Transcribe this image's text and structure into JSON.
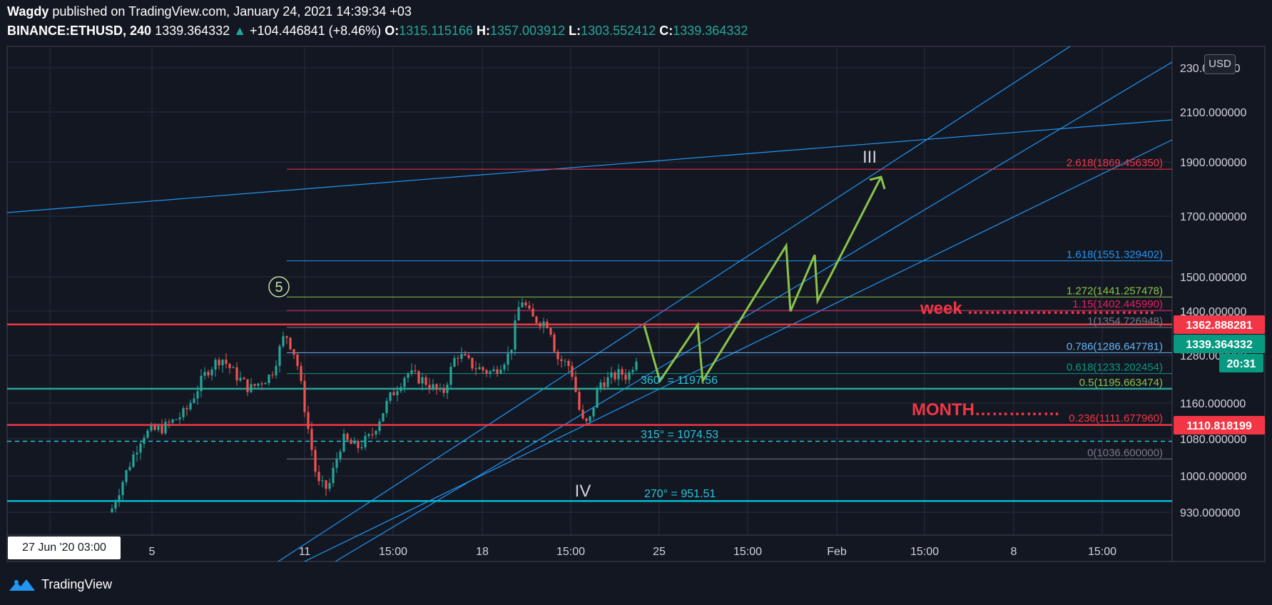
{
  "header": {
    "author": "Wagdy",
    "published_text": "published on TradingView.com, January 24, 2021 14:39:34 +03",
    "symbol": "BINANCE:ETHUSD, 240",
    "last": "1339.364332",
    "change": "+104.446841 (+8.46%)",
    "o_label": "O:",
    "o_value": "1315.115166",
    "h_label": "H:",
    "h_value": "1357.003912",
    "l_label": "L:",
    "l_value": "1303.552412",
    "c_label": "C:",
    "c_value": "1339.364332"
  },
  "currency_button": "USD",
  "date_cursor": "27 Jun '20   03:00",
  "footer_brand": "TradingView",
  "colors": {
    "background": "#131722",
    "up": "#26a69a",
    "down": "#ef5350",
    "blue": "#2196f3",
    "red_line": "#f23645",
    "cyan_line": "#00bcd4",
    "wave_green": "#8bc34a"
  },
  "chart_data": {
    "type": "candlestick",
    "price_axis": {
      "scale": "log",
      "ticks": [
        "230.000000",
        "2100.000000",
        "1900.000000",
        "1700.000000",
        "1500.000000",
        "1400.000000",
        "1280.000000",
        "1160.000000",
        "1080.000000",
        "1000.000000",
        "930.000000"
      ]
    },
    "time_axis": {
      "ticks": [
        "5",
        "11",
        "15:00",
        "18",
        "15:00",
        "25",
        "15:00",
        "Feb",
        "15:00",
        "8",
        "15:00"
      ]
    },
    "price_labels": [
      {
        "text": "1362.888281",
        "style": "red"
      },
      {
        "text": "1339.364332",
        "style": "green"
      },
      {
        "text": "20:31",
        "style": "green"
      },
      {
        "text": "1110.818199",
        "style": "red"
      }
    ],
    "fib_levels": [
      {
        "label": "2.618(1869.456350)",
        "price": 1869.45635,
        "color": "#f23645"
      },
      {
        "label": "1.618(1551.329402)",
        "price": 1551.329402,
        "color": "#2196f3"
      },
      {
        "label": "1.272(1441.257478)",
        "price": 1441.257478,
        "color": "#8bc34a"
      },
      {
        "label": "1.15(1402.445990)",
        "price": 1402.44599,
        "color": "#e91e63"
      },
      {
        "label": "1(1354.726948)",
        "price": 1354.726948,
        "color": "#787b86"
      },
      {
        "label": "0.786(1286.647781)",
        "price": 1286.647781,
        "color": "#64b5f6"
      },
      {
        "label": "0.618(1233.202454)",
        "price": 1233.202454,
        "color": "#089981"
      },
      {
        "label": "0.5(1195.663474)",
        "price": 1195.663474,
        "color": "#8bc34a"
      },
      {
        "label": "0.236(1111.677960)",
        "price": 1111.67796,
        "color": "#f23645"
      },
      {
        "label": "0(1036.600000)",
        "price": 1036.6,
        "color": "#787b86"
      }
    ],
    "horizontal_lines": [
      {
        "price": 1362.888281,
        "color": "#f23645"
      },
      {
        "price": 1110.818199,
        "color": "#f23645"
      },
      {
        "price": 1195.663474,
        "color": "#26a69a"
      },
      {
        "price": 1074.53,
        "color": "#26c6da",
        "dashed": true
      },
      {
        "price": 951.51,
        "color": "#00bcd4"
      }
    ],
    "gann_labels": [
      "360° = 1197.56",
      "315° = 1074.53",
      "270° = 951.51"
    ],
    "annotations": {
      "wave_5": "5",
      "wave_III": "III",
      "wave_IV": "IV",
      "week_label": "week ……………………………",
      "month_label": "MONTH……………"
    },
    "projection_path_prices": [
      1360,
      1215,
      1362,
      1215,
      1600,
      1400,
      1570,
      1430,
      1840
    ]
  }
}
